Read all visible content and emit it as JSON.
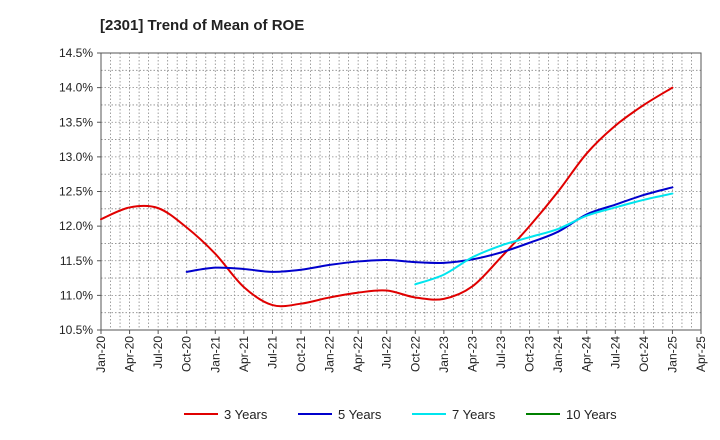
{
  "chart_data": {
    "type": "line",
    "title": "[2301]  Trend of Mean of ROE",
    "xlabel": "",
    "ylabel": "",
    "x_ticks": [
      "Jan-20",
      "Apr-20",
      "Jul-20",
      "Oct-20",
      "Jan-21",
      "Apr-21",
      "Jul-21",
      "Oct-21",
      "Jan-22",
      "Apr-22",
      "Jul-22",
      "Oct-22",
      "Jan-23",
      "Apr-23",
      "Jul-23",
      "Oct-23",
      "Jan-24",
      "Apr-24",
      "Jul-24",
      "Oct-24",
      "Jan-25",
      "Apr-25"
    ],
    "y_ticks": [
      "10.5%",
      "11.0%",
      "11.5%",
      "12.0%",
      "12.5%",
      "13.0%",
      "13.5%",
      "14.0%",
      "14.5%"
    ],
    "ylim": [
      10.5,
      14.5
    ],
    "grid": true,
    "legend_position": "bottom",
    "series": [
      {
        "name": "3 Years",
        "color": "#e00000",
        "points": [
          [
            "Jan-20",
            12.1
          ],
          [
            "Apr-20",
            12.27
          ],
          [
            "Jul-20",
            12.26
          ],
          [
            "Oct-20",
            11.98
          ],
          [
            "Jan-21",
            11.6
          ],
          [
            "Apr-21",
            11.12
          ],
          [
            "Jul-21",
            10.86
          ],
          [
            "Oct-21",
            10.88
          ],
          [
            "Jan-22",
            10.97
          ],
          [
            "Apr-22",
            11.04
          ],
          [
            "Jul-22",
            11.07
          ],
          [
            "Oct-22",
            10.97
          ],
          [
            "Jan-23",
            10.95
          ],
          [
            "Apr-23",
            11.13
          ],
          [
            "Jul-23",
            11.55
          ],
          [
            "Oct-23",
            12.0
          ],
          [
            "Jan-24",
            12.5
          ],
          [
            "Apr-24",
            13.05
          ],
          [
            "Jul-24",
            13.45
          ],
          [
            "Oct-24",
            13.75
          ],
          [
            "Jan-25",
            14.0
          ]
        ]
      },
      {
        "name": "5 Years",
        "color": "#0000cc",
        "points": [
          [
            "Oct-20",
            11.34
          ],
          [
            "Jan-21",
            11.4
          ],
          [
            "Apr-21",
            11.38
          ],
          [
            "Jul-21",
            11.34
          ],
          [
            "Oct-21",
            11.37
          ],
          [
            "Jan-22",
            11.44
          ],
          [
            "Apr-22",
            11.49
          ],
          [
            "Jul-22",
            11.51
          ],
          [
            "Oct-22",
            11.48
          ],
          [
            "Jan-23",
            11.47
          ],
          [
            "Apr-23",
            11.52
          ],
          [
            "Jul-23",
            11.62
          ],
          [
            "Oct-23",
            11.76
          ],
          [
            "Jan-24",
            11.92
          ],
          [
            "Apr-24",
            12.17
          ],
          [
            "Jul-24",
            12.31
          ],
          [
            "Oct-24",
            12.45
          ],
          [
            "Jan-25",
            12.56
          ]
        ]
      },
      {
        "name": "7 Years",
        "color": "#00e5ee",
        "points": [
          [
            "Oct-22",
            11.16
          ],
          [
            "Jan-23",
            11.3
          ],
          [
            "Apr-23",
            11.55
          ],
          [
            "Jul-23",
            11.72
          ],
          [
            "Oct-23",
            11.84
          ],
          [
            "Jan-24",
            11.96
          ],
          [
            "Apr-24",
            12.15
          ],
          [
            "Jul-24",
            12.27
          ],
          [
            "Oct-24",
            12.38
          ],
          [
            "Jan-25",
            12.47
          ]
        ]
      },
      {
        "name": "10 Years",
        "color": "#008000",
        "points": []
      }
    ]
  }
}
